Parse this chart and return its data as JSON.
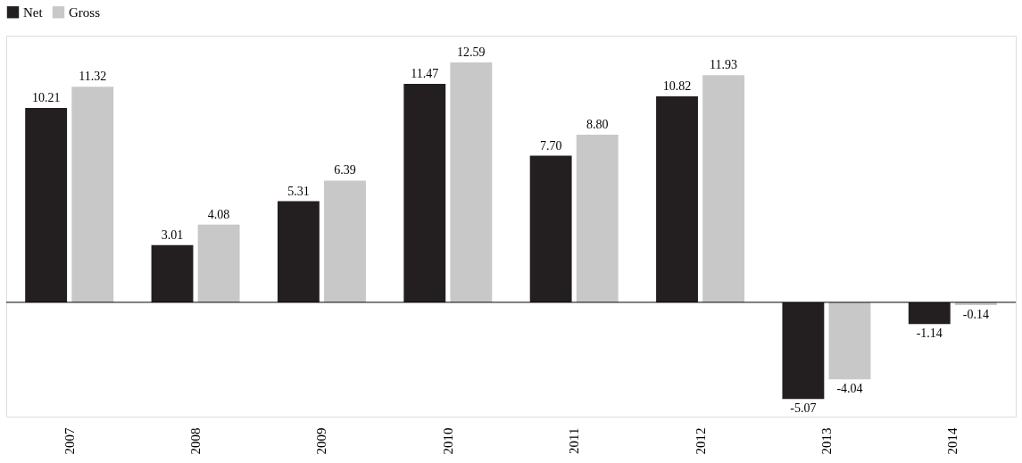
{
  "chart_data": {
    "type": "bar",
    "categories": [
      "2007",
      "2008",
      "2009",
      "2010",
      "2011",
      "2012",
      "2013",
      "2014"
    ],
    "series": [
      {
        "name": "Net",
        "color": "#231f20",
        "values": [
          10.21,
          3.01,
          5.31,
          11.47,
          7.7,
          10.82,
          -5.07,
          -1.14
        ],
        "value_labels": [
          "10.21",
          "3.01",
          "5.31",
          "11.47",
          "7.70",
          "10.82",
          "-5.07",
          "-1.14"
        ]
      },
      {
        "name": "Gross",
        "color": "#c8c8c9",
        "values": [
          11.32,
          4.08,
          6.39,
          12.59,
          8.8,
          11.93,
          -4.04,
          -0.14
        ],
        "value_labels": [
          "11.32",
          "4.08",
          "6.39",
          "12.59",
          "8.80",
          "11.93",
          "-4.04",
          "-0.14"
        ]
      }
    ],
    "legend": "top",
    "grid": false
  }
}
